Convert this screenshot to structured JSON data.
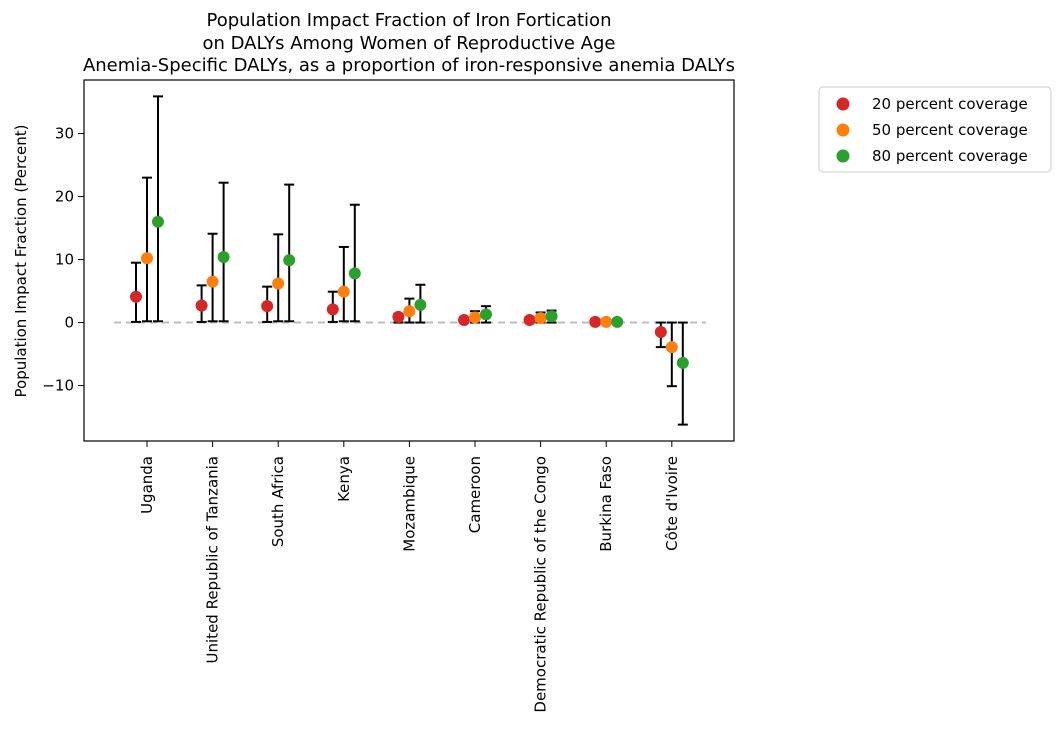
{
  "chart_data": {
    "type": "scatter",
    "title_lines": [
      "Population Impact Fraction of Iron Fortication",
      "on DALYs Among Women of Reproductive Age",
      "Anemia-Specific DALYs, as a proportion of iron-responsive anemia DALYs"
    ],
    "xlabel": "",
    "ylabel": "Population Impact Fraction (Percent)",
    "ylim": [
      -18.8,
      38.5
    ],
    "yticks": [
      -10,
      0,
      10,
      20,
      30
    ],
    "grid": false,
    "legend_position": "outside-top-right",
    "reference_line": 0,
    "categories": [
      "Uganda",
      "United Republic of Tanzania",
      "South Africa",
      "Kenya",
      "Mozambique",
      "Cameroon",
      "Democratic Republic of the Congo",
      "Burkina Faso",
      "Côte d'Ivoire"
    ],
    "series": [
      {
        "name": "20 percent coverage",
        "color": "#d62728",
        "values": [
          4.1,
          2.7,
          2.6,
          2.1,
          0.9,
          0.4,
          0.4,
          0.1,
          -1.5
        ],
        "lower": [
          0.1,
          0.1,
          0.1,
          0.1,
          0.0,
          0.0,
          0.0,
          0.0,
          -3.9
        ],
        "upper": [
          9.5,
          5.9,
          5.7,
          4.9,
          1.4,
          0.8,
          0.7,
          0.2,
          0.0
        ]
      },
      {
        "name": "50 percent coverage",
        "color": "#ff7f0e",
        "values": [
          10.2,
          6.5,
          6.2,
          4.9,
          1.8,
          0.8,
          0.7,
          0.1,
          -3.9
        ],
        "lower": [
          0.2,
          0.2,
          0.2,
          0.2,
          0.0,
          0.0,
          0.0,
          0.0,
          -10.1
        ],
        "upper": [
          23.0,
          14.1,
          14.0,
          12.0,
          3.8,
          1.8,
          1.6,
          0.2,
          0.0
        ]
      },
      {
        "name": "80 percent coverage",
        "color": "#2ca02c",
        "values": [
          16.0,
          10.4,
          9.9,
          7.8,
          2.8,
          1.3,
          1.0,
          0.1,
          -6.4
        ],
        "lower": [
          0.2,
          0.2,
          0.2,
          0.2,
          0.0,
          0.0,
          0.0,
          0.0,
          -16.2
        ],
        "upper": [
          35.9,
          22.2,
          21.9,
          18.7,
          6.0,
          2.6,
          1.9,
          0.2,
          0.0
        ]
      }
    ]
  }
}
